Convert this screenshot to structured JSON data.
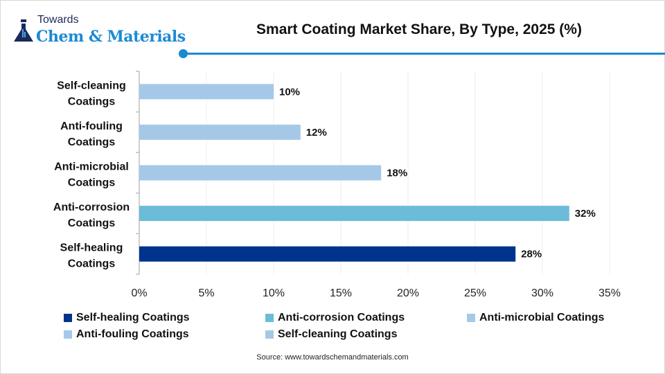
{
  "logo": {
    "line1": "Towards",
    "line2": "Chem & Materials"
  },
  "chart_data": {
    "type": "bar",
    "orientation": "horizontal",
    "title": "Smart Coating Market Share, By Type, 2025 (%)",
    "categories": [
      "Self-cleaning Coatings",
      "Anti-fouling Coatings",
      "Anti-microbial Coatings",
      "Anti-corrosion Coatings",
      "Self-healing Coatings"
    ],
    "category_lines": [
      [
        "Self-cleaning",
        "Coatings"
      ],
      [
        "Anti-fouling",
        "Coatings"
      ],
      [
        "Anti-microbial",
        "Coatings"
      ],
      [
        "Anti-corrosion",
        "Coatings"
      ],
      [
        "Self-healing",
        "Coatings"
      ]
    ],
    "values": [
      10,
      12,
      18,
      32,
      28
    ],
    "data_labels": [
      "10%",
      "12%",
      "18%",
      "32%",
      "28%"
    ],
    "colors": [
      "#a6c8e8",
      "#a6c8e8",
      "#a6c8e8",
      "#6bbcd9",
      "#00338d"
    ],
    "xlim": [
      0,
      35
    ],
    "xticks": [
      "0%",
      "5%",
      "10%",
      "15%",
      "20%",
      "25%",
      "30%",
      "35%"
    ],
    "grid": true,
    "legend_position": "bottom",
    "legend": [
      {
        "label": "Self-healing Coatings",
        "color": "#00338d"
      },
      {
        "label": "Anti-corrosion Coatings",
        "color": "#6bbcd9"
      },
      {
        "label": "Anti-microbial Coatings",
        "color": "#a6c8e8"
      },
      {
        "label": "Anti-fouling Coatings",
        "color": "#a6c8e8"
      },
      {
        "label": "Self-cleaning Coatings",
        "color": "#a6c8e8"
      }
    ]
  },
  "source": "Source: www.towardschemandmaterials.com",
  "accent_color": "#1a8ad4"
}
